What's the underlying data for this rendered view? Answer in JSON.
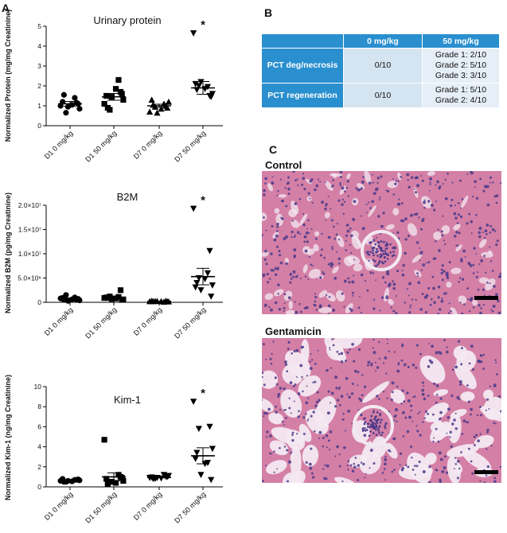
{
  "panels": {
    "a": "A",
    "b": "B",
    "c": "C"
  },
  "charts": {
    "urinary": {
      "title": "Urinary protein",
      "ylabel": "Normalized Protein (mg/mg Creatinine)",
      "ticks": [
        "0",
        "1",
        "2",
        "3",
        "4",
        "5"
      ]
    },
    "b2m": {
      "title": "B2M",
      "ylabel": "Normalized B2M (pg/mg Creatinine)",
      "ticks": [
        "0",
        "5.0×10⁶",
        "1.0×10⁷",
        "1.5×10⁷",
        "2.0×10⁷"
      ]
    },
    "kim1": {
      "title": "Kim-1",
      "ylabel": "Normalized Kim-1 (ng/mg Creatinine)",
      "ticks": [
        "0",
        "2",
        "4",
        "6",
        "8",
        "10"
      ]
    }
  },
  "chart_data": [
    {
      "type": "scatter",
      "title": "Urinary protein",
      "ylabel": "Normalized Protein (mg/mg Creatinine)",
      "categories": [
        "D1 0 mg/kg",
        "D1 50 mg/kg",
        "D7 0 mg/kg",
        "D7 50 mg/kg"
      ],
      "ylim": [
        0,
        5
      ],
      "yticks": [
        0,
        1,
        2,
        3,
        4,
        5
      ],
      "markers": [
        "circle",
        "square",
        "triangle-up",
        "triangle-down"
      ],
      "points": [
        [
          1.0,
          1.15,
          0.65,
          0.85,
          1.2,
          1.05,
          1.4,
          0.95,
          1.1,
          1.55
        ],
        [
          1.1,
          1.7,
          0.8,
          1.3,
          1.5,
          1.85,
          2.3,
          1.45,
          1.6,
          0.9
        ],
        [
          0.7,
          1.0,
          0.95,
          1.2,
          1.3,
          0.85,
          1.1,
          0.65,
          0.9,
          1.05
        ],
        [
          4.65,
          1.5,
          2.0,
          1.6,
          2.1,
          1.85,
          1.95,
          2.2,
          1.45,
          1.8
        ]
      ],
      "means": [
        1.1,
        1.45,
        1.0,
        1.9
      ],
      "errors": [
        0.12,
        0.17,
        0.08,
        0.32
      ],
      "annotations": [
        {
          "category": "D7 50 mg/kg",
          "text": "*"
        }
      ],
      "grid": false
    },
    {
      "type": "scatter",
      "title": "B2M",
      "ylabel": "Normalized B2M (pg/mg Creatinine)",
      "categories": [
        "D1 0 mg/kg",
        "D1 50 mg/kg",
        "D7 0 mg/kg",
        "D7 50 mg/kg"
      ],
      "ylim": [
        0,
        20000000
      ],
      "yticks": [
        0,
        5000000,
        10000000,
        15000000,
        20000000
      ],
      "markers": [
        "circle",
        "square",
        "triangle-up",
        "triangle-down"
      ],
      "points": [
        [
          800000,
          500000,
          1500000,
          400000,
          900000,
          600000,
          1000000,
          300000,
          700000,
          500000
        ],
        [
          900000,
          2500000,
          1200000,
          600000,
          1000000,
          800000,
          1100000,
          700000,
          500000,
          900000
        ],
        [
          200000,
          300000,
          250000,
          150000,
          300000,
          200000,
          100000,
          250000,
          150000,
          200000
        ],
        [
          19300000,
          10600000,
          5000000,
          3500000,
          3100000,
          4800000,
          6000000,
          2500000,
          1200000,
          4000000
        ]
      ],
      "means": [
        700000,
        1000000,
        200000,
        5300000
      ],
      "errors": [
        200000,
        300000,
        50000,
        1700000
      ],
      "annotations": [
        {
          "category": "D7 50 mg/kg",
          "text": "*"
        }
      ],
      "grid": false
    },
    {
      "type": "scatter",
      "title": "Kim-1",
      "ylabel": "Normalized Kim-1 (ng/mg Creatinine)",
      "categories": [
        "D1 0 mg/kg",
        "D1 50 mg/kg",
        "D7 0 mg/kg",
        "D7 50 mg/kg"
      ],
      "ylim": [
        0,
        10
      ],
      "yticks": [
        0,
        2,
        4,
        6,
        8,
        10
      ],
      "markers": [
        "circle",
        "square",
        "triangle-down",
        "triangle-down"
      ],
      "points": [
        [
          0.6,
          0.7,
          0.5,
          0.65,
          0.8,
          0.55,
          0.7,
          0.6,
          0.75,
          0.5
        ],
        [
          4.7,
          1.0,
          0.5,
          0.6,
          0.8,
          0.4,
          1.2,
          0.5,
          0.9,
          0.3
        ],
        [
          0.9,
          1.0,
          0.8,
          1.1,
          0.95,
          0.85,
          1.2,
          0.9,
          1.0,
          0.8
        ],
        [
          8.5,
          6.0,
          5.8,
          3.8,
          2.8,
          2.3,
          2.4,
          1.2,
          0.7,
          3.4
        ]
      ],
      "means": [
        0.65,
        1.0,
        0.95,
        3.1
      ],
      "errors": [
        0.05,
        0.4,
        0.05,
        0.8
      ],
      "annotations": [
        {
          "category": "D7 50 mg/kg",
          "text": "*"
        }
      ],
      "grid": false
    }
  ],
  "table": {
    "headers": [
      "",
      "0 mg/kg",
      "50 mg/kg"
    ],
    "rows": [
      {
        "label": "PCT deg/necrosis",
        "dose0": "0/10",
        "dose50": [
          "Grade 1: 2/10",
          "Grade 2: 5/10",
          "Grade 3: 3/10"
        ]
      },
      {
        "label": "PCT regeneration",
        "dose0": "0/10",
        "dose50": [
          "Grade 1: 5/10",
          "Grade 2: 4/10"
        ]
      }
    ]
  },
  "histology": {
    "control_label": "Control",
    "gentamicin_label": "Gentamicin",
    "colors": {
      "stroma": "#d47fa6",
      "nuclei": "#4a3a8a",
      "lumen": "#f3e9f1"
    }
  }
}
